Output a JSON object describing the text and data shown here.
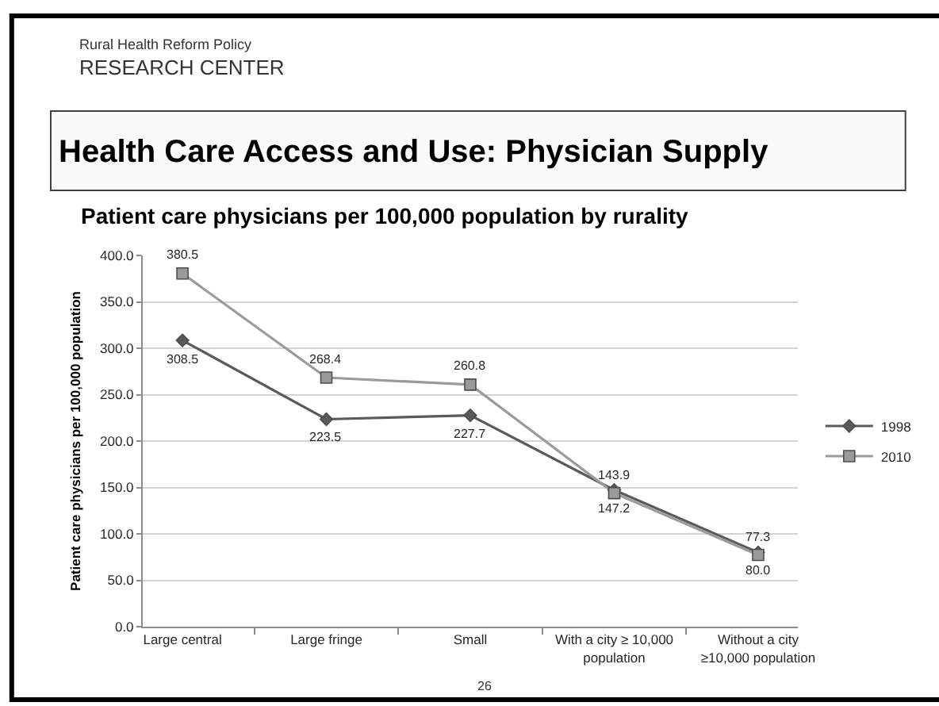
{
  "chart_data": {
    "type": "line",
    "title": "Health Care Access and Use: Physician Supply",
    "subtitle": "Patient care physicians per 100,000 population by rurality",
    "ylabel": "Patient care physicians per 100,000 population",
    "categories": [
      "Large central",
      "Large fringe",
      "Small",
      "With a city ≥ 10,000 population",
      "Without a city ≥10,000 population"
    ],
    "series": [
      {
        "name": "1998",
        "color": "#5a5a5a",
        "marker": "diamond",
        "values": [
          308.5,
          223.5,
          227.7,
          147.2,
          80.0
        ],
        "value_labels": [
          "308.5",
          "223.5",
          "227.7",
          "147.2",
          "80.0"
        ]
      },
      {
        "name": "2010",
        "color": "#9a9a9a",
        "marker": "square",
        "values": [
          380.5,
          268.4,
          260.8,
          143.9,
          77.3
        ],
        "value_labels": [
          "380.5",
          "268.4",
          "260.8",
          "143.9",
          "77.3"
        ]
      }
    ],
    "ylim": [
      0,
      400
    ],
    "yticks": [
      {
        "value": 0,
        "label": "0.0"
      },
      {
        "value": 50,
        "label": "50.0"
      },
      {
        "value": 100,
        "label": "100.0"
      },
      {
        "value": 150,
        "label": "150.0"
      },
      {
        "value": 200,
        "label": "200.0"
      },
      {
        "value": 250,
        "label": "250.0"
      },
      {
        "value": 300,
        "label": "300.0"
      },
      {
        "value": 350,
        "label": "350.0"
      },
      {
        "value": 400,
        "label": "400.0"
      }
    ],
    "grid": "y",
    "legend": "right",
    "annotations": [
      "Rural Health Reform Policy",
      "RESEARCH CENTER",
      "26"
    ]
  }
}
